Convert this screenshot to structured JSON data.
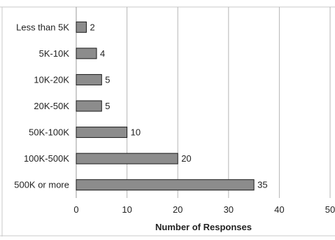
{
  "chart_data": {
    "type": "bar",
    "orientation": "horizontal",
    "categories": [
      "Less than 5K",
      "5K-10K",
      "10K-20K",
      "20K-50K",
      "50K-100K",
      "100K-500K",
      "500K or more"
    ],
    "values": [
      2,
      4,
      5,
      5,
      10,
      20,
      35
    ],
    "data_labels": [
      "2",
      "4",
      "5",
      "5",
      "10",
      "20",
      "35"
    ],
    "title": "",
    "xlabel": "Number of Responses",
    "ylabel": "",
    "xlim": [
      0,
      50
    ],
    "x_ticks": [
      "0",
      "10",
      "20",
      "30",
      "40",
      "50"
    ],
    "grid": "vertical",
    "legend": "none",
    "bar_color": "#8c8c8c",
    "bar_edge_color": "#1a1a1a",
    "gridline_color": "#b5b5b5"
  }
}
